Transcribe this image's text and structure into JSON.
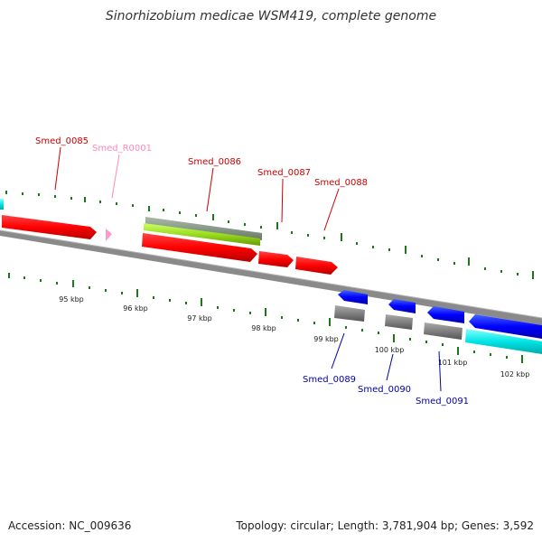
{
  "title": "Sinorhizobium medicae WSM419, complete genome",
  "footer": {
    "accession": "Accession: NC_009636",
    "summary": "Topology: circular; Length: 3,781,904 bp; Genes: 3,592"
  },
  "colors": {
    "forward_gene": "#ff0000",
    "reverse_gene": "#0000ff",
    "rna_gene": "#ff99cc",
    "cds_gray": "#808080",
    "cds_green": "#99cc33",
    "cds_cyan": "#00e5e5",
    "tick": "#1a7a1a",
    "backbone": "#888888",
    "label_forward": "#cc0000",
    "label_reverse": "#0000aa",
    "label_rna": "#ff88bb"
  },
  "scale_ticks": [
    "95 kbp",
    "96 kbp",
    "97 kbp",
    "98 kbp",
    "99 kbp",
    "100 kbp",
    "101 kbp",
    "102 kbp"
  ],
  "genes": [
    {
      "id": "Smed_0085",
      "strand": "forward",
      "type": "gene"
    },
    {
      "id": "Smed_R0001",
      "strand": "forward",
      "type": "rna"
    },
    {
      "id": "Smed_0086",
      "strand": "forward",
      "type": "gene"
    },
    {
      "id": "Smed_0087",
      "strand": "forward",
      "type": "gene"
    },
    {
      "id": "Smed_0088",
      "strand": "forward",
      "type": "gene"
    },
    {
      "id": "Smed_0089",
      "strand": "reverse",
      "type": "gene"
    },
    {
      "id": "Smed_0090",
      "strand": "reverse",
      "type": "gene"
    },
    {
      "id": "Smed_0091",
      "strand": "reverse",
      "type": "gene"
    }
  ]
}
